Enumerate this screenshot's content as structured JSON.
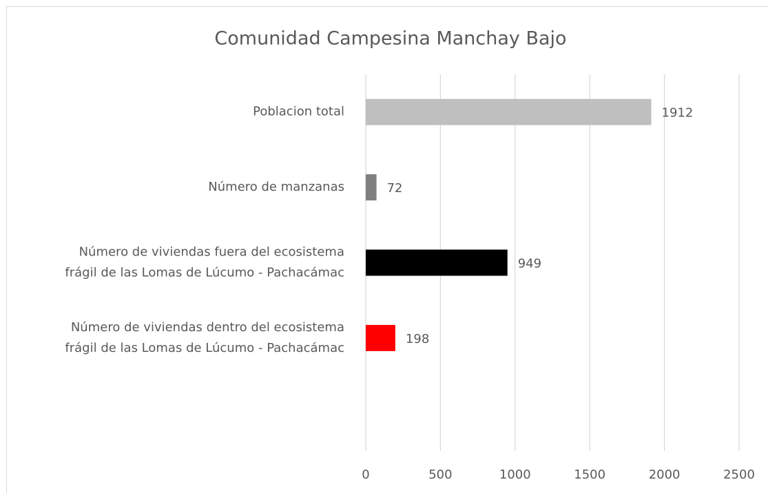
{
  "chart_data": {
    "type": "barh",
    "title": "Comunidad Campesina Manchay Bajo",
    "categories": [
      "Poblacion total",
      "Número de manzanas",
      "Número de viviendas fuera del ecosistema\nfrágil de las Lomas de Lúcumo - Pachacámac",
      "Número de viviendas dentro del ecosistema\nfrágil de las Lomas de Lúcumo - Pachacámac",
      null
    ],
    "values": [
      1912,
      72,
      949,
      198,
      null
    ],
    "colors": [
      "#bfbfbf",
      "#7f7f7f",
      "#000000",
      "#ff0000",
      null
    ],
    "xlim": [
      0,
      2500
    ],
    "xticks": [
      0,
      500,
      1000,
      1500,
      2000,
      2500
    ],
    "grid": true
  }
}
